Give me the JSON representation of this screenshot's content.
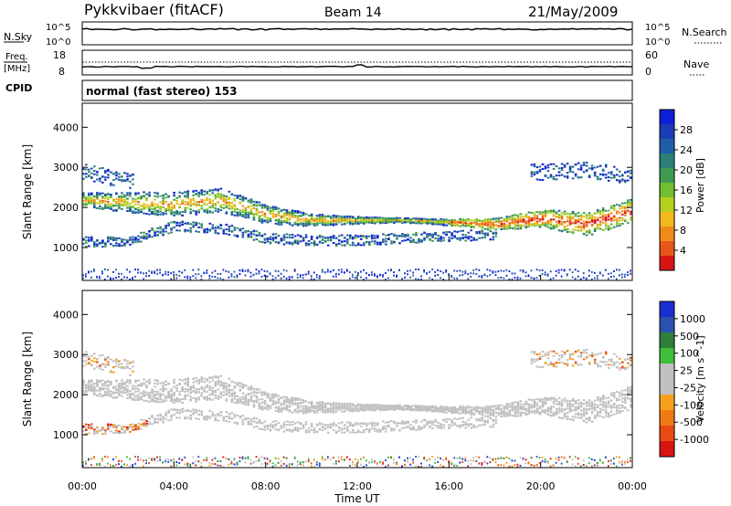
{
  "header": {
    "station": "Pykkvibaer (fitACF)",
    "beam": "Beam 14",
    "date": "21/May/2009"
  },
  "strip_panels": {
    "nsky": {
      "label": "N.Sky",
      "ticks": [
        "10^5",
        "10^0"
      ],
      "right_label": "N.Search",
      "right_ticks": [
        "10^5",
        "10^0"
      ]
    },
    "freq": {
      "label_line1": "Freq.",
      "label_line2": "[MHz]",
      "ticks": [
        "18",
        "8"
      ],
      "right_label": "Nave",
      "right_ticks": [
        "60",
        "0"
      ]
    },
    "cpid": {
      "label": "CPID",
      "value": "normal (fast stereo) 153"
    }
  },
  "chart_data": [
    {
      "type": "heatmap",
      "title": "",
      "ylabel": "Slant Range [km]",
      "ylim": [
        180,
        4600
      ],
      "yticks": [
        1000,
        2000,
        3000,
        4000
      ],
      "xlim": [
        "00:00",
        "24:00"
      ],
      "colorbar": {
        "label": "Power [dB]",
        "ticks": [
          "28",
          "24",
          "20",
          "16",
          "12",
          "8",
          "4"
        ],
        "range": [
          0,
          32
        ],
        "colors": [
          "#0d1fd8",
          "#1b3bb8",
          "#205da8",
          "#2a7f78",
          "#3f9a50",
          "#6fbf2e",
          "#b5cf1f",
          "#f2b81c",
          "#f08a18",
          "#e8561b",
          "#d91414"
        ]
      },
      "features": [
        {
          "name": "main band",
          "x": [
            0,
            2,
            4,
            6,
            8,
            10,
            12,
            14,
            16,
            18,
            20,
            22,
            24
          ],
          "y": [
            2200,
            2150,
            2100,
            2200,
            1850,
            1700,
            1700,
            1700,
            1650,
            1600,
            1750,
            1600,
            1950
          ]
        },
        {
          "name": "lower band",
          "x": [
            0,
            2,
            4,
            6,
            8,
            10,
            12,
            14,
            16,
            18
          ],
          "y": [
            1150,
            1200,
            1550,
            1500,
            1250,
            1200,
            1200,
            1250,
            1300,
            1350
          ]
        },
        {
          "name": "upper patch",
          "x": [
            0,
            1,
            2,
            20,
            22,
            24
          ],
          "y": [
            2900,
            2800,
            2700,
            2900,
            2950,
            2800
          ]
        }
      ]
    },
    {
      "type": "heatmap",
      "title": "",
      "ylabel": "Slant Range [km]",
      "ylim": [
        180,
        4600
      ],
      "yticks": [
        1000,
        2000,
        3000,
        4000
      ],
      "xlim": [
        "00:00",
        "24:00"
      ],
      "xlabel": "Time UT",
      "xticks": [
        "00:00",
        "04:00",
        "08:00",
        "12:00",
        "16:00",
        "20:00",
        "00:00"
      ],
      "colorbar": {
        "label": "Velocity [m s^-1]",
        "ticks": [
          "1000",
          "500",
          "100",
          "25",
          "-25",
          "-100",
          "-500",
          "-1000"
        ],
        "colors": [
          "#1a2fd0",
          "#2b52b0",
          "#2f7f3a",
          "#3fbf3a",
          "#c0c0c0",
          "#c0c0c0",
          "#f5a21a",
          "#f07a12",
          "#e84a12",
          "#d81414"
        ]
      }
    }
  ]
}
